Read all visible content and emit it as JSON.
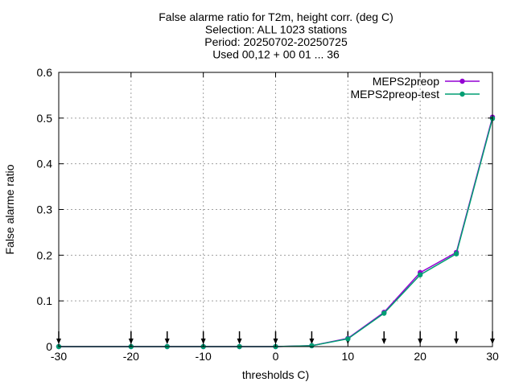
{
  "chart_data": {
    "type": "line",
    "title": [
      "False alarme ratio  for T2m, height corr. (deg C)",
      "Selection: ALL   1023 stations",
      "Period: 20250702-20250725",
      "Used 00,12 + 00 01 ... 36"
    ],
    "xlabel": "thresholds C)",
    "ylabel": "False alarme ratio",
    "xlim": [
      -30,
      30
    ],
    "ylim": [
      0,
      0.6
    ],
    "xticks": [
      -30,
      -20,
      -10,
      0,
      10,
      20,
      30
    ],
    "yticks": [
      0,
      0.1,
      0.2,
      0.3,
      0.4,
      0.5,
      0.6
    ],
    "grid": true,
    "legend_position": "top-right",
    "series": [
      {
        "name": "MEPS2preop",
        "color": "#9400d3",
        "x": [
          -30,
          -20,
          -15,
          -10,
          -5,
          0,
          5,
          10,
          15,
          20,
          25,
          30
        ],
        "values": [
          0,
          0,
          0,
          0,
          0,
          0,
          0.002,
          0.018,
          0.075,
          0.162,
          0.206,
          0.502
        ]
      },
      {
        "name": "MEPS2preop-test",
        "color": "#009e73",
        "x": [
          -30,
          -20,
          -15,
          -10,
          -5,
          0,
          5,
          10,
          15,
          20,
          25,
          30
        ],
        "values": [
          0,
          0,
          0,
          0,
          0,
          0,
          0.002,
          0.017,
          0.073,
          0.157,
          0.203,
          0.499
        ]
      }
    ],
    "arrows_x": [
      -30,
      -20,
      -15,
      -10,
      -5,
      0,
      5,
      10,
      15,
      20,
      25,
      30
    ]
  }
}
